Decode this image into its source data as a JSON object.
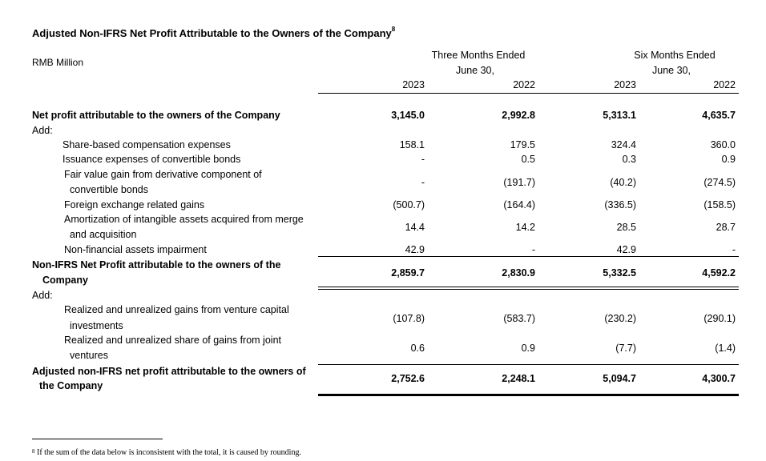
{
  "title": "Adjusted Non-IFRS Net Profit Attributable to the Owners of the Company",
  "title_footnote_ref": "8",
  "unit_label": "RMB Million",
  "headers": {
    "three_months": [
      "Three Months Ended",
      "June 30,"
    ],
    "six_months": [
      "Six Months Ended",
      "June 30,"
    ],
    "years": [
      "2023",
      "2022",
      "2023",
      "2022"
    ]
  },
  "rows": {
    "net_profit": {
      "label": "Net profit attributable to the owners of the Company",
      "values": [
        "3,145.0",
        "2,992.8",
        "5,313.1",
        "4,635.7"
      ]
    },
    "add1": {
      "label": "Add:"
    },
    "sbc": {
      "label": "Share-based compensation expenses",
      "values": [
        "158.1",
        "179.5",
        "324.4",
        "360.0"
      ]
    },
    "issuance": {
      "label": "Issuance expenses of convertible bonds",
      "values": [
        "-",
        "0.5",
        "0.3",
        "0.9"
      ]
    },
    "fair_value": {
      "label_lines": [
        "Fair value gain from derivative component of",
        "convertible bonds"
      ],
      "values": [
        "-",
        "(191.7)",
        "(40.2)",
        "(274.5)"
      ]
    },
    "fx": {
      "label": "Foreign exchange related gains",
      "values": [
        "(500.7)",
        "(164.4)",
        "(336.5)",
        "(158.5)"
      ]
    },
    "amortization": {
      "label_lines": [
        "Amortization of intangible assets acquired from merge",
        "and acquisition"
      ],
      "values": [
        "14.4",
        "14.2",
        "28.5",
        "28.7"
      ]
    },
    "impairment": {
      "label": "Non-financial assets impairment",
      "values": [
        "42.9",
        "-",
        "42.9",
        "-"
      ]
    },
    "non_ifrs": {
      "label_lines": [
        "Non-IFRS Net Profit attributable to the owners of the",
        "Company"
      ],
      "values": [
        "2,859.7",
        "2,830.9",
        "5,332.5",
        "4,592.2"
      ]
    },
    "add2": {
      "label": "Add:"
    },
    "venture": {
      "label_lines": [
        "Realized and unrealized gains from venture capital",
        "investments"
      ],
      "values": [
        "(107.8)",
        "(583.7)",
        "(230.2)",
        "(290.1)"
      ]
    },
    "joint": {
      "label_lines": [
        "Realized and unrealized share of gains from joint",
        "ventures"
      ],
      "values": [
        "0.6",
        "0.9",
        "(7.7)",
        "(1.4)"
      ]
    },
    "adjusted": {
      "label_lines": [
        "Adjusted non-IFRS net profit attributable to the owners of",
        "the Company"
      ],
      "values": [
        "2,752.6",
        "2,248.1",
        "5,094.7",
        "4,300.7"
      ]
    }
  },
  "footnote": {
    "ref": "8",
    "text": "If the sum of the data below is inconsistent with the total, it is caused by rounding."
  }
}
